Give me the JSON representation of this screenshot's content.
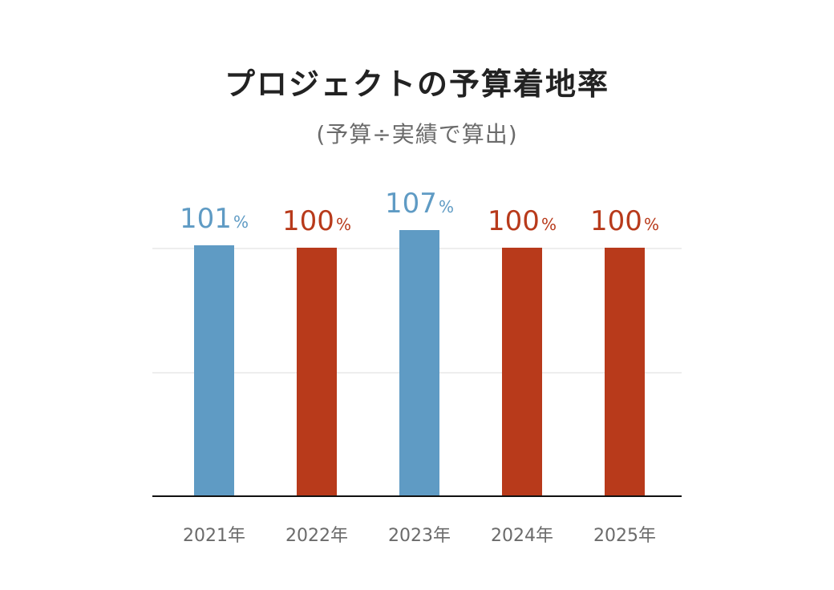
{
  "title": "プロジェクトの予算着地率",
  "subtitle": "(予算÷実績で算出)",
  "colors": {
    "over": "#5f9bc4",
    "on_target": "#b83a1b"
  },
  "chart_data": {
    "type": "bar",
    "title": "プロジェクトの予算着地率",
    "subtitle": "(予算÷実績で算出)",
    "categories": [
      "2021年",
      "2022年",
      "2023年",
      "2024年",
      "2025年"
    ],
    "values": [
      101,
      100,
      107,
      100,
      100
    ],
    "value_labels": [
      "101",
      "100",
      "107",
      "100",
      "100"
    ],
    "value_suffix": "%",
    "bar_colors": [
      "#5f9bc4",
      "#b83a1b",
      "#5f9bc4",
      "#b83a1b",
      "#b83a1b"
    ],
    "xlabel": "",
    "ylabel": "",
    "ylim": [
      0,
      115
    ],
    "gridlines": [
      50,
      100
    ],
    "grid": true,
    "legend": null
  }
}
